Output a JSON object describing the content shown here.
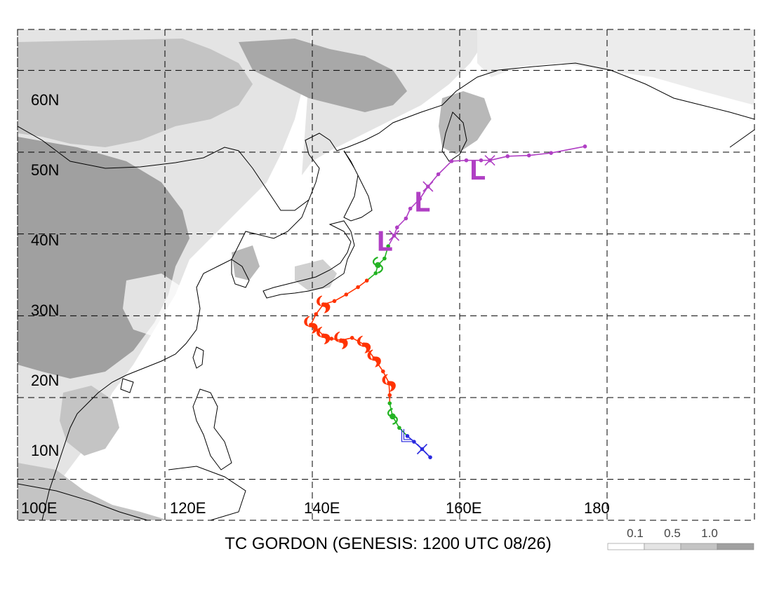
{
  "map": {
    "caption": "TC GORDON (GENESIS: 1200 UTC 08/26)",
    "lon_labels": [
      "100E",
      "120E",
      "140E",
      "160E",
      "180"
    ],
    "lat_labels": [
      "10N",
      "20N",
      "30N",
      "40N",
      "50N",
      "60N"
    ],
    "lon_range": [
      100,
      200
    ],
    "lat_range": [
      5,
      65
    ],
    "gridlines": true,
    "legend": {
      "levels": [
        "0.1",
        "0.5",
        "1.0"
      ],
      "colors": [
        "#ffffff",
        "#e4e4e4",
        "#c4c4c4",
        "#a0a0a0"
      ],
      "placement": "bottom-right"
    },
    "track_colors": {
      "depression": "#2a2adf",
      "storm": "#22b322",
      "typhoon": "#ff3300",
      "extratropical": "#b03fc4"
    },
    "track": [
      {
        "lon": 156.0,
        "lat": 12.7,
        "stage": "depression"
      },
      {
        "lon": 154.9,
        "lat": 13.7,
        "stage": "depression",
        "symbol": "x"
      },
      {
        "lon": 153.8,
        "lat": 14.6,
        "stage": "depression"
      },
      {
        "lon": 152.9,
        "lat": 15.3,
        "stage": "depression",
        "symbol": "L"
      },
      {
        "lon": 151.8,
        "lat": 16.3,
        "stage": "storm"
      },
      {
        "lon": 150.9,
        "lat": 17.7,
        "stage": "storm",
        "symbol": "storm"
      },
      {
        "lon": 150.5,
        "lat": 19.3,
        "stage": "storm"
      },
      {
        "lon": 150.5,
        "lat": 20.3,
        "stage": "typhoon"
      },
      {
        "lon": 150.4,
        "lat": 21.8,
        "stage": "typhoon",
        "symbol": "typhoon"
      },
      {
        "lon": 149.6,
        "lat": 23.2,
        "stage": "typhoon"
      },
      {
        "lon": 148.4,
        "lat": 24.8,
        "stage": "typhoon",
        "symbol": "typhoon"
      },
      {
        "lon": 147.0,
        "lat": 26.5,
        "stage": "typhoon",
        "symbol": "typhoon"
      },
      {
        "lon": 145.4,
        "lat": 27.3,
        "stage": "typhoon"
      },
      {
        "lon": 143.9,
        "lat": 27.0,
        "stage": "typhoon",
        "symbol": "typhoon"
      },
      {
        "lon": 142.6,
        "lat": 27.2,
        "stage": "typhoon"
      },
      {
        "lon": 141.5,
        "lat": 27.6,
        "stage": "typhoon",
        "symbol": "typhoon"
      },
      {
        "lon": 140.8,
        "lat": 28.2,
        "stage": "typhoon"
      },
      {
        "lon": 139.8,
        "lat": 28.9,
        "stage": "typhoon",
        "symbol": "typhoon"
      },
      {
        "lon": 140.5,
        "lat": 30.2,
        "stage": "typhoon"
      },
      {
        "lon": 141.5,
        "lat": 31.4,
        "stage": "typhoon",
        "symbol": "typhoon"
      },
      {
        "lon": 143.0,
        "lat": 31.8,
        "stage": "typhoon"
      },
      {
        "lon": 144.6,
        "lat": 32.6,
        "stage": "typhoon"
      },
      {
        "lon": 146.2,
        "lat": 33.5,
        "stage": "typhoon"
      },
      {
        "lon": 147.4,
        "lat": 34.3,
        "stage": "typhoon"
      },
      {
        "lon": 148.6,
        "lat": 35.2,
        "stage": "storm"
      },
      {
        "lon": 148.9,
        "lat": 36.2,
        "stage": "storm",
        "symbol": "storm"
      },
      {
        "lon": 149.8,
        "lat": 37.0,
        "stage": "storm"
      },
      {
        "lon": 150.3,
        "lat": 38.5,
        "stage": "storm"
      },
      {
        "lon": 151.1,
        "lat": 39.8,
        "stage": "extratropical",
        "symbol": "x"
      },
      {
        "lon": 151.5,
        "lat": 40.8,
        "stage": "extratropical"
      },
      {
        "lon": 152.7,
        "lat": 41.9,
        "stage": "extratropical"
      },
      {
        "lon": 153.3,
        "lat": 43.1,
        "stage": "extratropical"
      },
      {
        "lon": 154.6,
        "lat": 44.3,
        "stage": "extratropical"
      },
      {
        "lon": 155.7,
        "lat": 45.8,
        "stage": "extratropical",
        "symbol": "x"
      },
      {
        "lon": 157.1,
        "lat": 47.3,
        "stage": "extratropical"
      },
      {
        "lon": 158.9,
        "lat": 48.9,
        "stage": "extratropical"
      },
      {
        "lon": 160.9,
        "lat": 49.0,
        "stage": "extratropical"
      },
      {
        "lon": 162.9,
        "lat": 49.0,
        "stage": "extratropical"
      },
      {
        "lon": 164.1,
        "lat": 49.0,
        "stage": "extratropical",
        "symbol": "x"
      },
      {
        "lon": 166.5,
        "lat": 49.5,
        "stage": "extratropical"
      },
      {
        "lon": 169.4,
        "lat": 49.6,
        "stage": "extratropical"
      },
      {
        "lon": 172.4,
        "lat": 49.9,
        "stage": "extratropical"
      },
      {
        "lon": 177.0,
        "lat": 50.7,
        "stage": "extratropical"
      }
    ],
    "L_markers": [
      {
        "lon": 154.4,
        "lat": 43.6,
        "stage": "extratropical"
      },
      {
        "lon": 161.9,
        "lat": 47.5,
        "stage": "extratropical"
      },
      {
        "lon": 149.3,
        "lat": 38.8,
        "stage": "extratropical"
      }
    ]
  }
}
